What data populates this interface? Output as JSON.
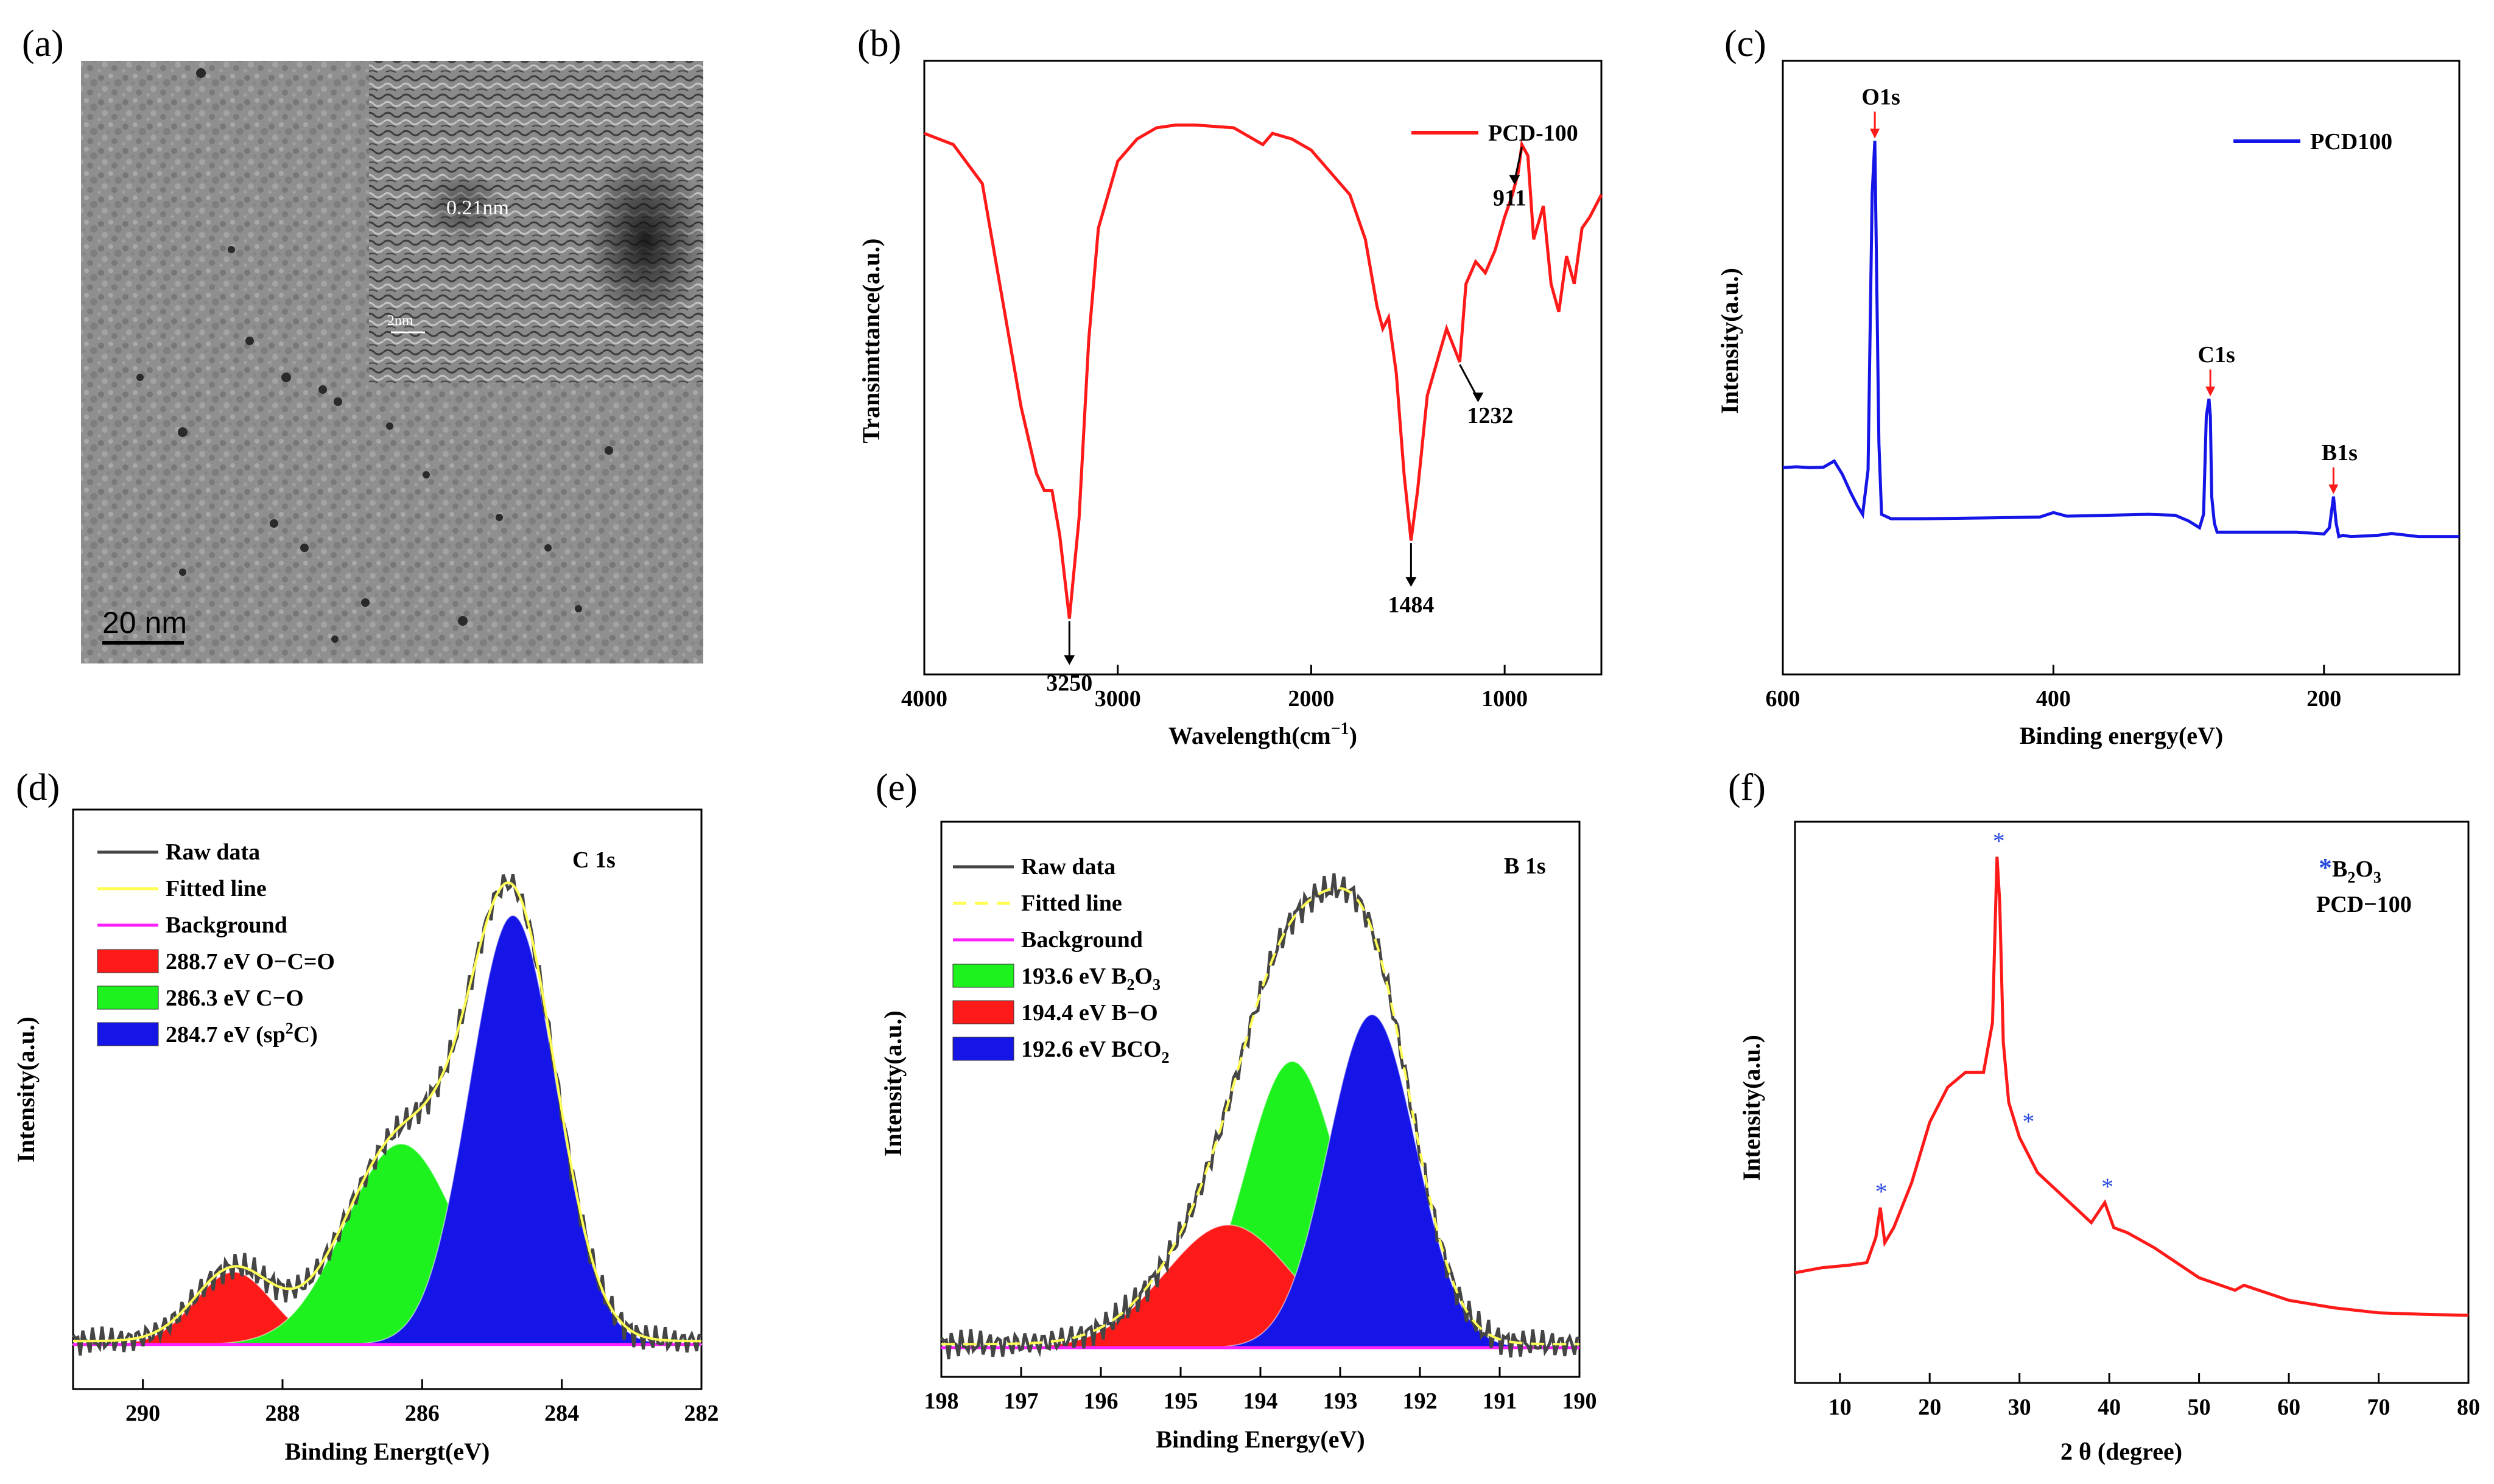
{
  "panels": {
    "a": {
      "letter": "(a)",
      "scale_label": "20 nm",
      "inset_lattice_label": "0.21nm",
      "inset_scale_label": "2nm"
    },
    "b": {
      "letter": "(b)",
      "legend": "PCD-100",
      "peaks": [
        "3250",
        "1484",
        "1232",
        "911"
      ]
    },
    "c": {
      "letter": "(c)",
      "legend": "PCD100",
      "peaks": [
        "O1s",
        "C1s",
        "B1s"
      ]
    },
    "d": {
      "letter": "(d)",
      "corner_label": "C 1s",
      "legend": [
        "Raw data",
        "Fitted line",
        "Background",
        "288.7 eV O−C=O",
        "286.3 eV C−O",
        "284.7 eV (sp²C)"
      ]
    },
    "e": {
      "letter": "(e)",
      "corner_label": "B 1s",
      "legend": [
        "Raw data",
        "Fitted line",
        "Background",
        "193.6 eV B₂O₃",
        "194.4 eV B−O",
        "192.6 eV BCO₂"
      ]
    },
    "f": {
      "letter": "(f)",
      "legend": [
        "*B₂O₃",
        "PCD−100"
      ],
      "star": "*"
    }
  },
  "colors": {
    "red": "#ff1a1a",
    "blue": "#1515e8",
    "green": "#1ef21e",
    "dark": "#454545",
    "yellow": "#ffff55",
    "magenta": "#ff22ff",
    "star_blue": "#2a4de0"
  },
  "chart_data": [
    {
      "id": "b",
      "type": "line",
      "title": "",
      "xlabel": "Wavelength(cm⁻¹)",
      "ylabel": "Transimttance(a.u.)",
      "xlim": [
        4000,
        500
      ],
      "xticks": [
        4000,
        3000,
        2000,
        1000
      ],
      "xtick_labels": [
        "4000",
        "3000",
        "2000",
        "1000"
      ],
      "series": [
        {
          "name": "PCD-100",
          "color": "#ff1a1a",
          "x": [
            4000,
            3850,
            3700,
            3600,
            3500,
            3420,
            3380,
            3340,
            3300,
            3250,
            3200,
            3150,
            3100,
            3000,
            2900,
            2800,
            2700,
            2600,
            2400,
            2300,
            2250,
            2200,
            2100,
            2000,
            1900,
            1800,
            1720,
            1660,
            1630,
            1600,
            1560,
            1520,
            1484,
            1450,
            1400,
            1350,
            1300,
            1232,
            1200,
            1150,
            1100,
            1050,
            1000,
            960,
            930,
            911,
            880,
            850,
            800,
            760,
            720,
            680,
            640,
            600,
            560,
            500
          ],
          "y": [
            97,
            95,
            88,
            68,
            48,
            36,
            33,
            33,
            25,
            10,
            28,
            60,
            80,
            92,
            96,
            98,
            98.5,
            98.5,
            98,
            96,
            95,
            97,
            96,
            94,
            90,
            86,
            78,
            66,
            62,
            64,
            54,
            36,
            24,
            33,
            50,
            56,
            62,
            56,
            70,
            74,
            72,
            76,
            82,
            86,
            90,
            95,
            93,
            78,
            84,
            70,
            65,
            75,
            70,
            80,
            82,
            86
          ]
        }
      ],
      "annotations": [
        {
          "label": "3250",
          "x": 3250
        },
        {
          "label": "1484",
          "x": 1484
        },
        {
          "label": "1232",
          "x": 1232
        },
        {
          "label": "911",
          "x": 911
        }
      ]
    },
    {
      "id": "c",
      "type": "line",
      "title": "",
      "xlabel": "Binding energy(eV)",
      "ylabel": "Intensity(a.u.)",
      "xlim": [
        600,
        100
      ],
      "xticks": [
        600,
        400,
        200
      ],
      "xtick_labels": [
        "600",
        "400",
        "200"
      ],
      "series": [
        {
          "name": "PCD100",
          "color": "#1515e8",
          "x": [
            600,
            590,
            580,
            570,
            562,
            556,
            550,
            545,
            541,
            537,
            534,
            532,
            531,
            529,
            527,
            520,
            500,
            450,
            410,
            400,
            390,
            330,
            310,
            300,
            292,
            289,
            287,
            285,
            284,
            283,
            281,
            279,
            270,
            220,
            200,
            196,
            193,
            191,
            189,
            186,
            180,
            160,
            150,
            130,
            100
          ],
          "y": [
            18.5,
            18.7,
            18.5,
            18.6,
            20,
            17,
            13,
            10,
            8,
            18,
            80,
            92,
            70,
            24,
            8,
            7,
            7,
            7.2,
            7.4,
            8.4,
            7.6,
            8,
            7.8,
            6.5,
            5,
            8,
            30,
            34,
            30,
            12,
            6,
            4,
            4,
            4,
            3.6,
            5,
            12,
            6,
            3,
            3.3,
            3,
            3.3,
            3.7,
            3,
            3
          ]
        }
      ],
      "annotations": [
        {
          "label": "O1s",
          "x": 532
        },
        {
          "label": "C1s",
          "x": 284
        },
        {
          "label": "B1s",
          "x": 193
        }
      ]
    },
    {
      "id": "d",
      "type": "area",
      "title": "C 1s",
      "xlabel": "Binding Energt(eV)",
      "ylabel": "Intensity(a.u.)",
      "xlim": [
        291,
        282
      ],
      "xticks": [
        290,
        288,
        286,
        284,
        282
      ],
      "xtick_labels": [
        "290",
        "288",
        "286",
        "284",
        "282"
      ],
      "series": [
        {
          "name": "288.7 eV O−C=O",
          "kind": "gaussian",
          "center": 288.7,
          "height": 13,
          "sigma": 0.55,
          "color": "#ff1a1a"
        },
        {
          "name": "286.3 eV C−O",
          "kind": "gaussian",
          "center": 286.3,
          "height": 36,
          "sigma": 0.8,
          "color": "#1ef21e"
        },
        {
          "name": "284.7 eV (sp²C)",
          "kind": "gaussian",
          "center": 284.7,
          "height": 77,
          "sigma": 0.62,
          "color": "#1515e8"
        },
        {
          "name": "Raw data",
          "kind": "line",
          "color": "#454545"
        },
        {
          "name": "Fitted line",
          "kind": "line",
          "color": "#ffff55"
        },
        {
          "name": "Background",
          "kind": "line",
          "color": "#ff22ff"
        }
      ]
    },
    {
      "id": "e",
      "type": "area",
      "title": "B 1s",
      "xlabel": "Binding Energy(eV)",
      "ylabel": "Intensity(a.u.)",
      "xlim": [
        198,
        190
      ],
      "xticks": [
        198,
        197,
        196,
        195,
        194,
        193,
        192,
        191,
        190
      ],
      "xtick_labels": [
        "198",
        "197",
        "196",
        "195",
        "194",
        "193",
        "192",
        "191",
        "190"
      ],
      "series": [
        {
          "name": "193.6 eV B₂O₃",
          "kind": "gaussian",
          "center": 193.6,
          "height": 49,
          "sigma": 0.6,
          "color": "#1ef21e"
        },
        {
          "name": "194.4 eV B−O",
          "kind": "gaussian",
          "center": 194.4,
          "height": 21,
          "sigma": 0.8,
          "color": "#ff1a1a"
        },
        {
          "name": "192.6 eV BCO₂",
          "kind": "gaussian",
          "center": 192.6,
          "height": 57,
          "sigma": 0.55,
          "color": "#1515e8"
        },
        {
          "name": "Raw data",
          "kind": "line",
          "color": "#454545"
        },
        {
          "name": "Fitted line",
          "kind": "line",
          "color": "#ffff55"
        },
        {
          "name": "Background",
          "kind": "line",
          "color": "#ff22ff"
        }
      ]
    },
    {
      "id": "f",
      "type": "line",
      "title": "",
      "xlabel": "2 θ (degree)",
      "ylabel": "Intensity(a.u.)",
      "xlim": [
        5,
        80
      ],
      "xticks": [
        10,
        20,
        30,
        40,
        50,
        60,
        70,
        80
      ],
      "xtick_labels": [
        "10",
        "20",
        "30",
        "40",
        "50",
        "60",
        "70",
        "80"
      ],
      "series": [
        {
          "name": "PCD−100",
          "color": "#ff1a1a",
          "x": [
            5,
            8,
            11,
            13,
            14,
            14.5,
            15,
            16,
            18,
            20,
            22,
            24,
            26,
            27,
            27.5,
            27.8,
            28.2,
            28.8,
            30,
            32,
            35,
            38,
            39.5,
            40.5,
            42,
            45,
            50,
            54,
            55,
            60,
            65,
            70,
            75,
            80
          ],
          "y": [
            10,
            11,
            11.5,
            12,
            17,
            23,
            16,
            19,
            28,
            40,
            47,
            50,
            50,
            60,
            93,
            84,
            56,
            44,
            37,
            30,
            25,
            20,
            24,
            19,
            18,
            15,
            9,
            6.5,
            7.5,
            4.5,
            3,
            2,
            1.7,
            1.5
          ]
        }
      ],
      "markers": [
        {
          "label": "*",
          "x": 14.6
        },
        {
          "label": "*",
          "x": 27.7
        },
        {
          "label": "*",
          "x": 31.0
        },
        {
          "label": "*",
          "x": 39.8
        }
      ]
    }
  ]
}
